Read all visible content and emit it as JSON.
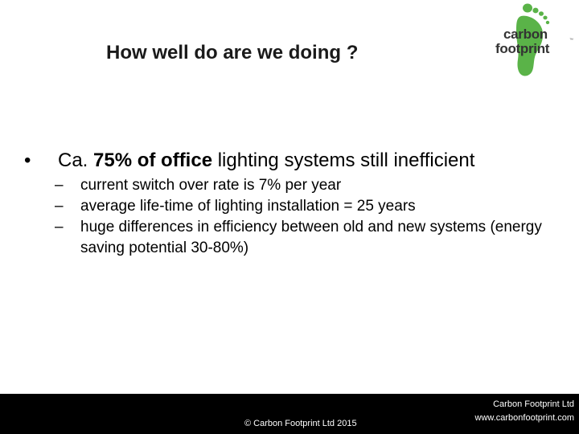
{
  "slide": {
    "title": "How well do are we doing ?"
  },
  "logo": {
    "line1": "carbon",
    "line2": "footprint",
    "trademark": "™",
    "icon": "green-footprint-icon",
    "accent_color": "#5ab348"
  },
  "bullet": {
    "marker": "•",
    "prefix": "Ca. ",
    "bold": "75% of office",
    "rest": " lighting systems still inefficient",
    "sub_items": [
      {
        "dash": "–",
        "text": "current switch over rate is 7% per year"
      },
      {
        "dash": "–",
        "text": "average life-time of lighting installation = 25 years"
      },
      {
        "dash": "–",
        "text": "huge differences in efficiency between old and new systems (energy saving potential 30-80%)"
      }
    ]
  },
  "footer": {
    "copyright": "© Carbon Footprint Ltd 2015",
    "company": "Carbon Footprint Ltd",
    "website": "www.carbonfootprint.com"
  }
}
